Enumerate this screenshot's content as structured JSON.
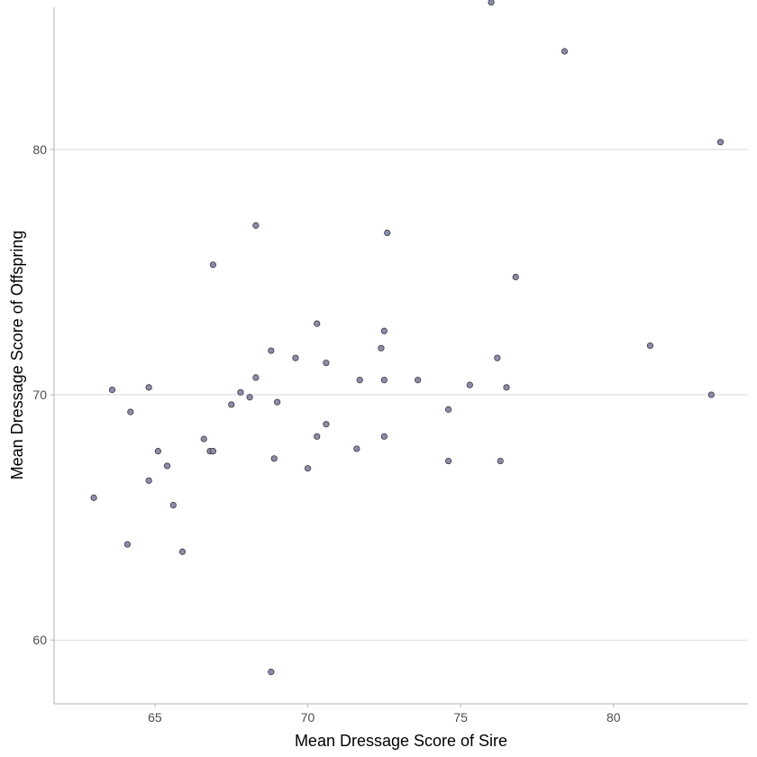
{
  "chart_data": {
    "type": "scatter",
    "xlabel": "Mean Dressage Score of Sire",
    "ylabel": "Mean Dressage Score of Offspring",
    "xlim": [
      61.7,
      84.4
    ],
    "ylim": [
      57.4,
      85.8
    ],
    "xticks": [
      65,
      70,
      75,
      80
    ],
    "yticks": [
      60,
      70,
      80
    ],
    "xtick_labels": [
      "65",
      "70",
      "75",
      "80"
    ],
    "ytick_labels": [
      "60",
      "70",
      "80"
    ],
    "grid": "horizontal-major",
    "point_color": "#8c8ca6",
    "point_edge_color": "#3a3a4a",
    "series": [
      {
        "x": [
          63.0,
          63.6,
          64.1,
          64.2,
          64.8,
          64.8,
          65.1,
          65.4,
          65.6,
          65.9,
          66.6,
          66.8,
          66.9,
          66.9,
          67.5,
          67.8,
          68.1,
          68.3,
          68.3,
          68.8,
          68.8,
          68.9,
          69.0,
          69.6,
          70.0,
          70.3,
          70.3,
          70.6,
          70.6,
          71.6,
          71.7,
          72.4,
          72.5,
          72.5,
          72.5,
          72.6,
          73.6,
          74.6,
          74.6,
          75.3,
          76.0,
          76.2,
          76.3,
          76.5,
          76.8,
          78.4,
          81.2,
          83.2,
          83.5
        ],
        "y": [
          65.8,
          70.2,
          63.9,
          69.3,
          70.3,
          66.5,
          67.7,
          67.1,
          65.5,
          63.6,
          68.2,
          67.7,
          75.3,
          67.7,
          69.6,
          70.1,
          69.9,
          76.9,
          70.7,
          71.8,
          58.7,
          67.4,
          69.7,
          71.5,
          67.0,
          72.9,
          68.3,
          68.8,
          71.3,
          67.8,
          70.6,
          71.9,
          72.6,
          70.6,
          68.3,
          76.6,
          70.6,
          69.4,
          67.3,
          70.4,
          86.0,
          71.5,
          67.3,
          70.3,
          74.8,
          84.0,
          72.0,
          70.0,
          80.3
        ]
      }
    ]
  }
}
